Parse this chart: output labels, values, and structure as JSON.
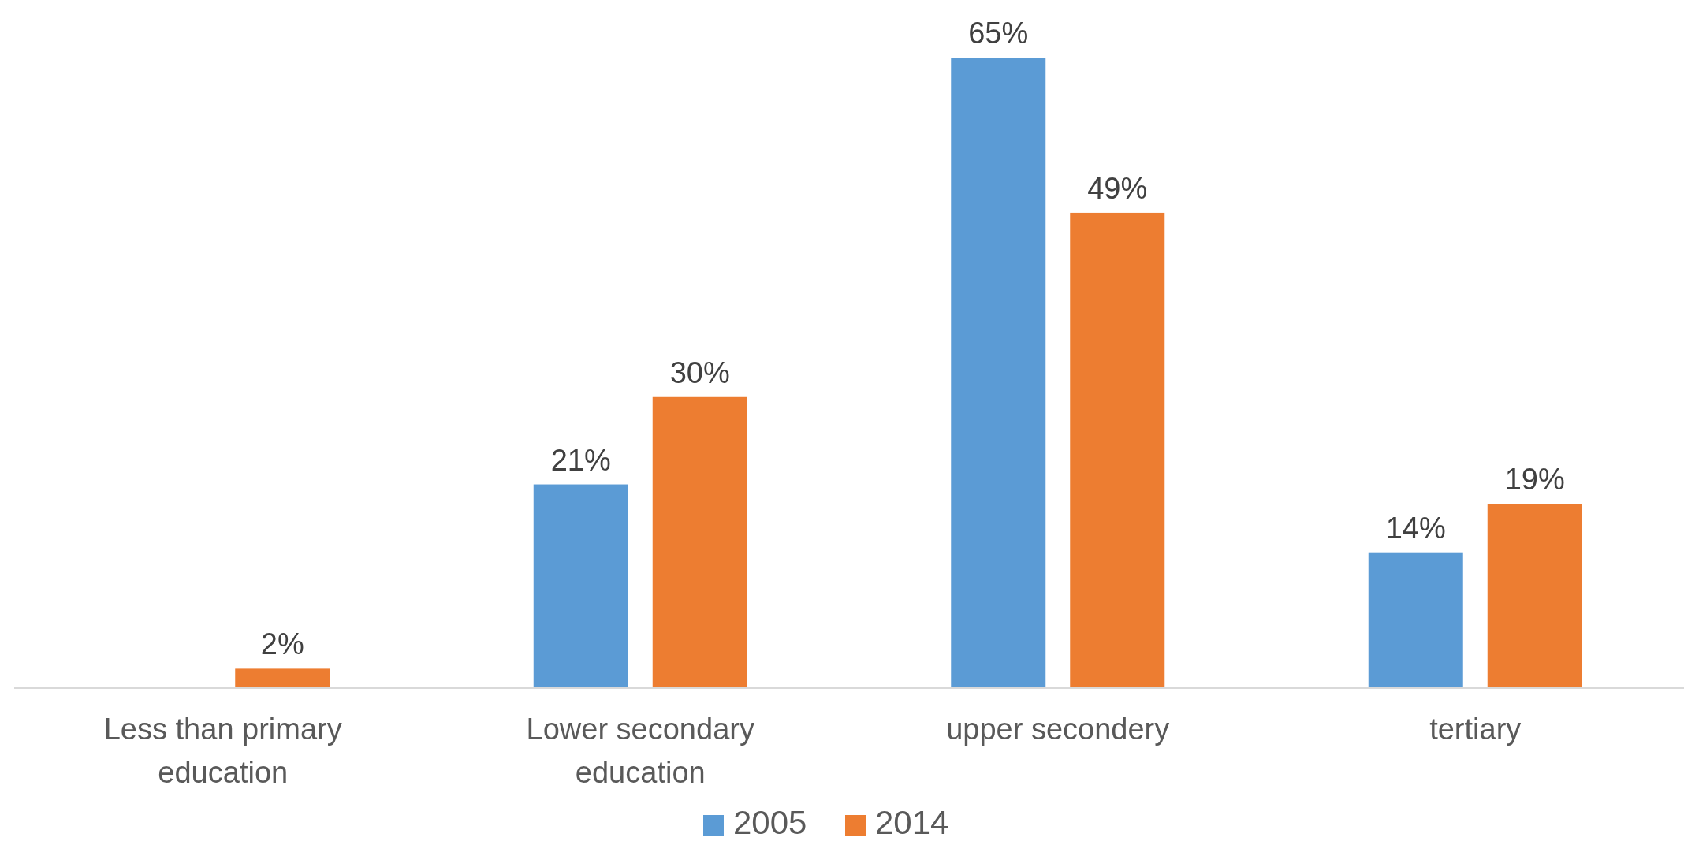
{
  "chart_data": {
    "type": "bar",
    "categories": [
      "Less than primary education",
      "Lower secondary education",
      "upper secondery",
      "tertiary"
    ],
    "series": [
      {
        "name": "2005",
        "color": "#5b9bd5",
        "values": [
          null,
          21,
          65,
          14
        ],
        "value_labels": [
          null,
          "21%",
          "65%",
          "14%"
        ]
      },
      {
        "name": "2014",
        "color": "#ed7d31",
        "values": [
          2,
          30,
          49,
          19
        ],
        "value_labels": [
          "2%",
          "30%",
          "49%",
          "19%"
        ]
      }
    ],
    "legend": "bottom"
  }
}
